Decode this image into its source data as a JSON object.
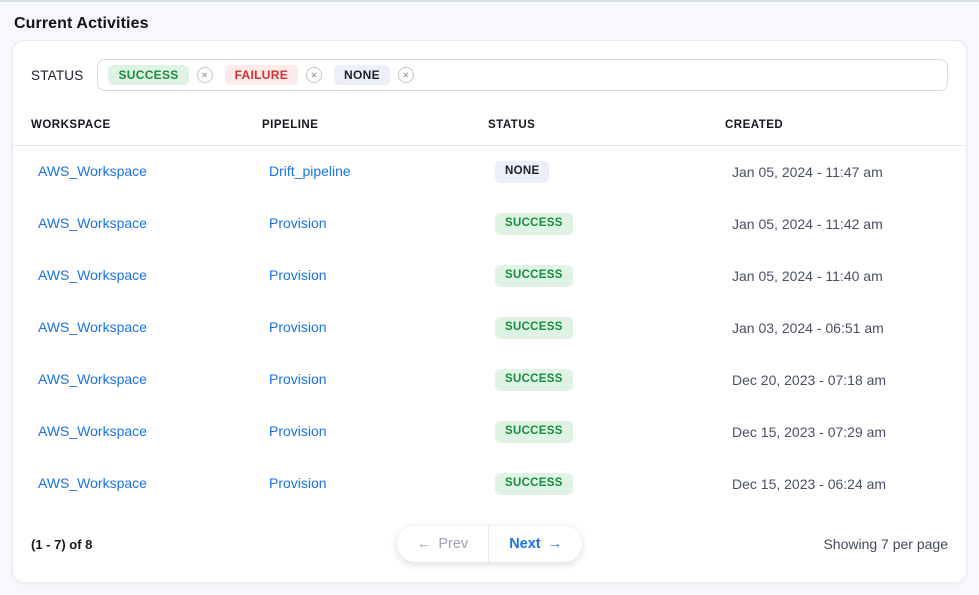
{
  "page": {
    "title": "Current Activities"
  },
  "filter": {
    "label": "STATUS",
    "chips": [
      {
        "label": "SUCCESS",
        "type": "success"
      },
      {
        "label": "FAILURE",
        "type": "failure"
      },
      {
        "label": "NONE",
        "type": "none"
      }
    ],
    "remove_icon": "✕"
  },
  "table": {
    "columns": [
      "WORKSPACE",
      "PIPELINE",
      "STATUS",
      "CREATED"
    ],
    "rows": [
      {
        "workspace": "AWS_Workspace",
        "pipeline": "Drift_pipeline",
        "status": "NONE",
        "status_type": "none",
        "created": "Jan 05, 2024 - 11:47 am"
      },
      {
        "workspace": "AWS_Workspace",
        "pipeline": "Provision",
        "status": "SUCCESS",
        "status_type": "success",
        "created": "Jan 05, 2024 - 11:42 am"
      },
      {
        "workspace": "AWS_Workspace",
        "pipeline": "Provision",
        "status": "SUCCESS",
        "status_type": "success",
        "created": "Jan 05, 2024 - 11:40 am"
      },
      {
        "workspace": "AWS_Workspace",
        "pipeline": "Provision",
        "status": "SUCCESS",
        "status_type": "success",
        "created": "Jan 03, 2024 - 06:51 am"
      },
      {
        "workspace": "AWS_Workspace",
        "pipeline": "Provision",
        "status": "SUCCESS",
        "status_type": "success",
        "created": "Dec 20, 2023 - 07:18 am"
      },
      {
        "workspace": "AWS_Workspace",
        "pipeline": "Provision",
        "status": "SUCCESS",
        "status_type": "success",
        "created": "Dec 15, 2023 - 07:29 am"
      },
      {
        "workspace": "AWS_Workspace",
        "pipeline": "Provision",
        "status": "SUCCESS",
        "status_type": "success",
        "created": "Dec 15, 2023 - 06:24 am"
      }
    ]
  },
  "pagination": {
    "range": "(1 - 7) of 8",
    "prev_arrow": "←",
    "prev_label": "Prev",
    "next_label": "Next",
    "next_arrow": "→",
    "per_page": "Showing 7 per page"
  },
  "colors": {
    "link_blue": "#1a73e8",
    "success_text": "#178c3d",
    "success_bg": "#def3e4",
    "failure_text": "#d32f2f",
    "failure_bg": "#fdeaea",
    "none_text": "#1c202b",
    "none_bg": "#eceef8",
    "page_bg": "#f7f8fc"
  }
}
